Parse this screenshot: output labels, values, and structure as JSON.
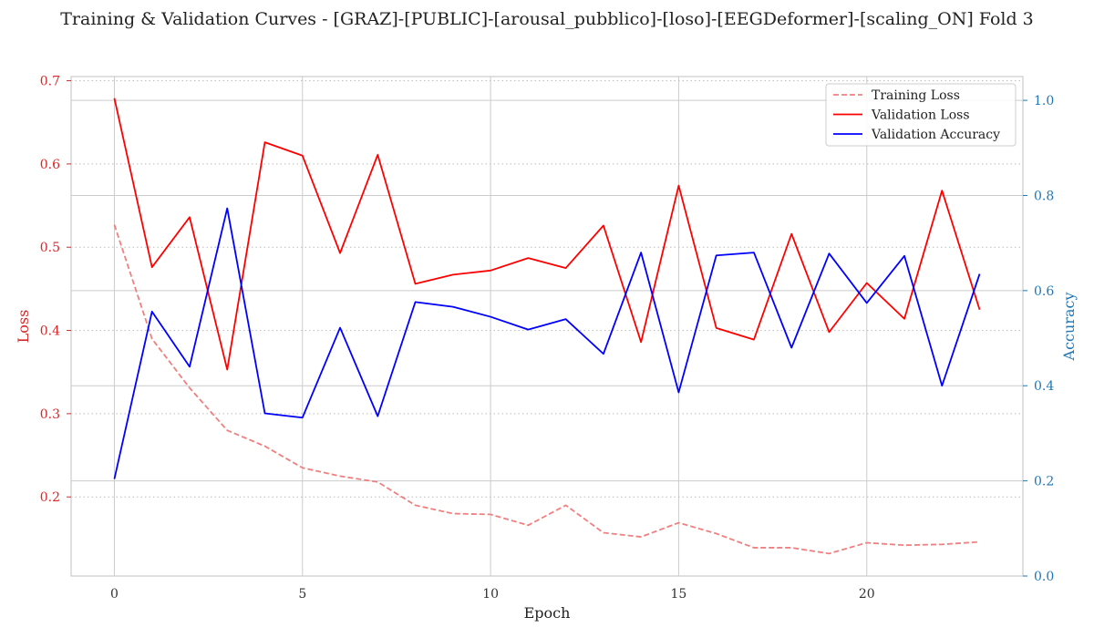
{
  "chart_data": {
    "type": "line",
    "title": "Training & Validation Curves - [GRAZ]-[PUBLIC]-[arousal_pubblico]-[loso]-[EEGDeformer]-[scaling_ON] Fold 3",
    "xlabel": "Epoch",
    "ylabel_left": "Loss",
    "ylabel_right": "Accuracy",
    "x": [
      0,
      1,
      2,
      3,
      4,
      5,
      6,
      7,
      8,
      9,
      10,
      11,
      12,
      13,
      14,
      15,
      16,
      17,
      18,
      19,
      20,
      21,
      22,
      23
    ],
    "xlim": [
      -1.15,
      24.15
    ],
    "ylim_left": [
      0.105,
      0.705
    ],
    "ylim_right": [
      0.0,
      1.05
    ],
    "x_ticks": [
      0,
      5,
      10,
      15,
      20
    ],
    "y_ticks_left": [
      0.2,
      0.3,
      0.4,
      0.5,
      0.6,
      0.7
    ],
    "y_ticks_right": [
      0.0,
      0.2,
      0.4,
      0.6,
      0.8,
      1.0
    ],
    "grid": true,
    "legend_position": "top-right",
    "series": [
      {
        "name": "Training Loss",
        "axis": "left",
        "color": "#f08080",
        "style": "dashed",
        "values": [
          0.527,
          0.39,
          0.331,
          0.28,
          0.261,
          0.235,
          0.225,
          0.218,
          0.19,
          0.18,
          0.179,
          0.166,
          0.19,
          0.157,
          0.152,
          0.169,
          0.156,
          0.139,
          0.139,
          0.132,
          0.145,
          0.142,
          0.143,
          0.146
        ]
      },
      {
        "name": "Validation Loss",
        "axis": "left",
        "color": "#ff0000",
        "style": "solid",
        "values": [
          0.679,
          0.476,
          0.536,
          0.353,
          0.626,
          0.61,
          0.493,
          0.611,
          0.456,
          0.467,
          0.472,
          0.487,
          0.475,
          0.526,
          0.386,
          0.574,
          0.403,
          0.389,
          0.516,
          0.398,
          0.457,
          0.414,
          0.568,
          0.425
        ]
      },
      {
        "name": "Validation Accuracy",
        "axis": "right",
        "color": "#0000ff",
        "style": "solid",
        "values": [
          0.204,
          0.556,
          0.44,
          0.773,
          0.342,
          0.333,
          0.522,
          0.336,
          0.576,
          0.566,
          0.545,
          0.518,
          0.54,
          0.467,
          0.68,
          0.386,
          0.674,
          0.68,
          0.48,
          0.678,
          0.574,
          0.673,
          0.4,
          0.635
        ]
      }
    ],
    "colors": {
      "loss_axis": "#d62728",
      "accuracy_axis": "#1f77b4"
    }
  }
}
